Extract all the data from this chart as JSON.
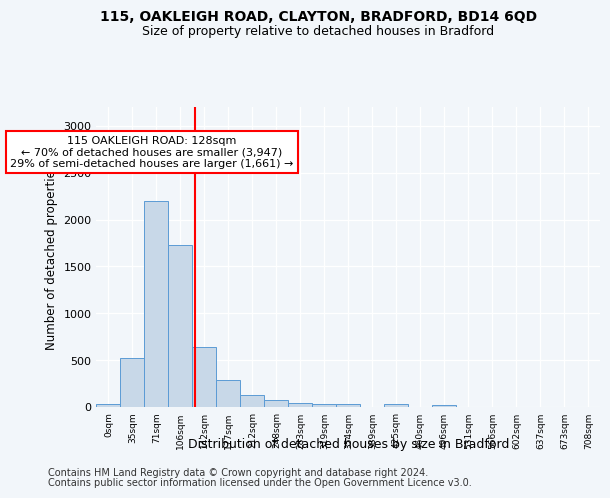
{
  "title1": "115, OAKLEIGH ROAD, CLAYTON, BRADFORD, BD14 6QD",
  "title2": "Size of property relative to detached houses in Bradford",
  "xlabel": "Distribution of detached houses by size in Bradford",
  "ylabel": "Number of detached properties",
  "bar_labels": [
    "0sqm",
    "35sqm",
    "71sqm",
    "106sqm",
    "142sqm",
    "177sqm",
    "212sqm",
    "248sqm",
    "283sqm",
    "319sqm",
    "354sqm",
    "389sqm",
    "425sqm",
    "460sqm",
    "496sqm",
    "531sqm",
    "566sqm",
    "602sqm",
    "637sqm",
    "673sqm",
    "708sqm"
  ],
  "bar_values": [
    30,
    525,
    2195,
    1730,
    635,
    290,
    130,
    75,
    45,
    35,
    35,
    0,
    30,
    0,
    20,
    0,
    0,
    0,
    0,
    0,
    0
  ],
  "bar_color": "#c8d8e8",
  "bar_edge_color": "#5b9bd5",
  "vline_x": 3.62,
  "vline_color": "red",
  "annotation_text": "115 OAKLEIGH ROAD: 128sqm\n← 70% of detached houses are smaller (3,947)\n29% of semi-detached houses are larger (1,661) →",
  "annotation_box_color": "white",
  "annotation_box_edgecolor": "red",
  "ylim": [
    0,
    3200
  ],
  "yticks": [
    0,
    500,
    1000,
    1500,
    2000,
    2500,
    3000
  ],
  "footer1": "Contains HM Land Registry data © Crown copyright and database right 2024.",
  "footer2": "Contains public sector information licensed under the Open Government Licence v3.0.",
  "bg_color": "#f2f6fa",
  "plot_bg_color": "#f2f6fa",
  "title1_fontsize": 10,
  "title2_fontsize": 9,
  "xlabel_fontsize": 9,
  "ylabel_fontsize": 8.5,
  "footer_fontsize": 7,
  "annot_fontsize": 8
}
